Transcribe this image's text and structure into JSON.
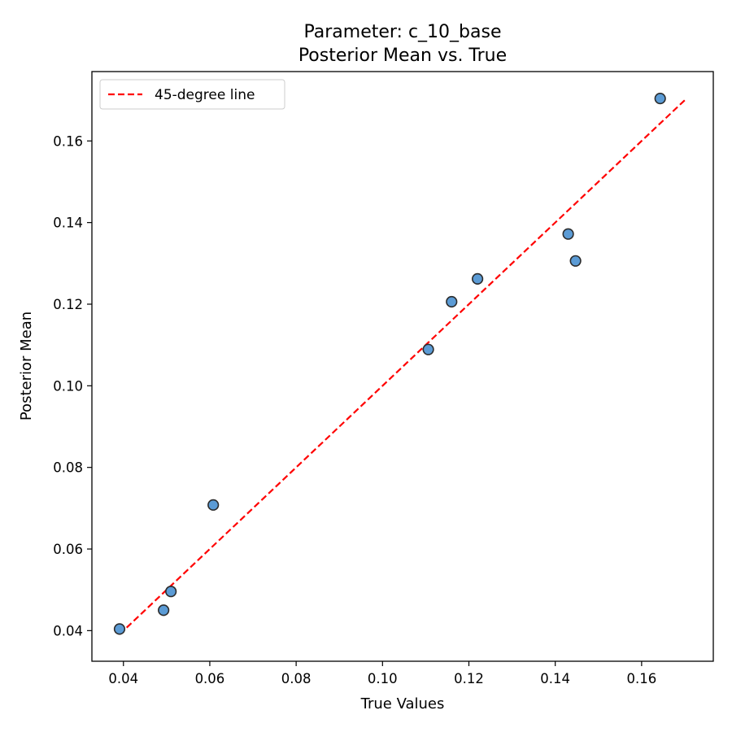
{
  "chart_data": {
    "type": "scatter",
    "title": "Parameter: c_10_base",
    "subtitle": "Posterior Mean vs. True",
    "xlabel": "True Values",
    "ylabel": "Posterior Mean",
    "xlim": [
      0.0327,
      0.1766
    ],
    "ylim": [
      0.0325,
      0.177
    ],
    "xticks": [
      0.04,
      0.06,
      0.08,
      0.1,
      0.12,
      0.14,
      0.16
    ],
    "yticks": [
      0.04,
      0.06,
      0.08,
      0.1,
      0.12,
      0.14,
      0.16
    ],
    "xtick_labels": [
      "0.04",
      "0.06",
      "0.08",
      "0.10",
      "0.12",
      "0.14",
      "0.16"
    ],
    "ytick_labels": [
      "0.04",
      "0.06",
      "0.08",
      "0.10",
      "0.12",
      "0.14",
      "0.16"
    ],
    "grid": false,
    "legend_position": "upper-left",
    "series": [
      {
        "kind": "scatter",
        "color": "#5b9bd5",
        "edge_color": "#2b2b2b",
        "points": [
          {
            "x": 0.0391,
            "y": 0.0404
          },
          {
            "x": 0.0493,
            "y": 0.045
          },
          {
            "x": 0.051,
            "y": 0.0496
          },
          {
            "x": 0.0608,
            "y": 0.0708
          },
          {
            "x": 0.1106,
            "y": 0.1089
          },
          {
            "x": 0.116,
            "y": 0.1206
          },
          {
            "x": 0.122,
            "y": 0.1262
          },
          {
            "x": 0.143,
            "y": 0.1372
          },
          {
            "x": 0.1447,
            "y": 0.1306
          },
          {
            "x": 0.1643,
            "y": 0.1704
          }
        ]
      },
      {
        "kind": "line",
        "name": "45-degree line",
        "color": "#ff0000",
        "dash": "dashed",
        "points": [
          {
            "x": 0.0391,
            "y": 0.0391
          },
          {
            "x": 0.17,
            "y": 0.17
          }
        ]
      }
    ],
    "legend": [
      {
        "label": "45-degree line",
        "color": "#ff0000",
        "style": "dashed"
      }
    ]
  }
}
